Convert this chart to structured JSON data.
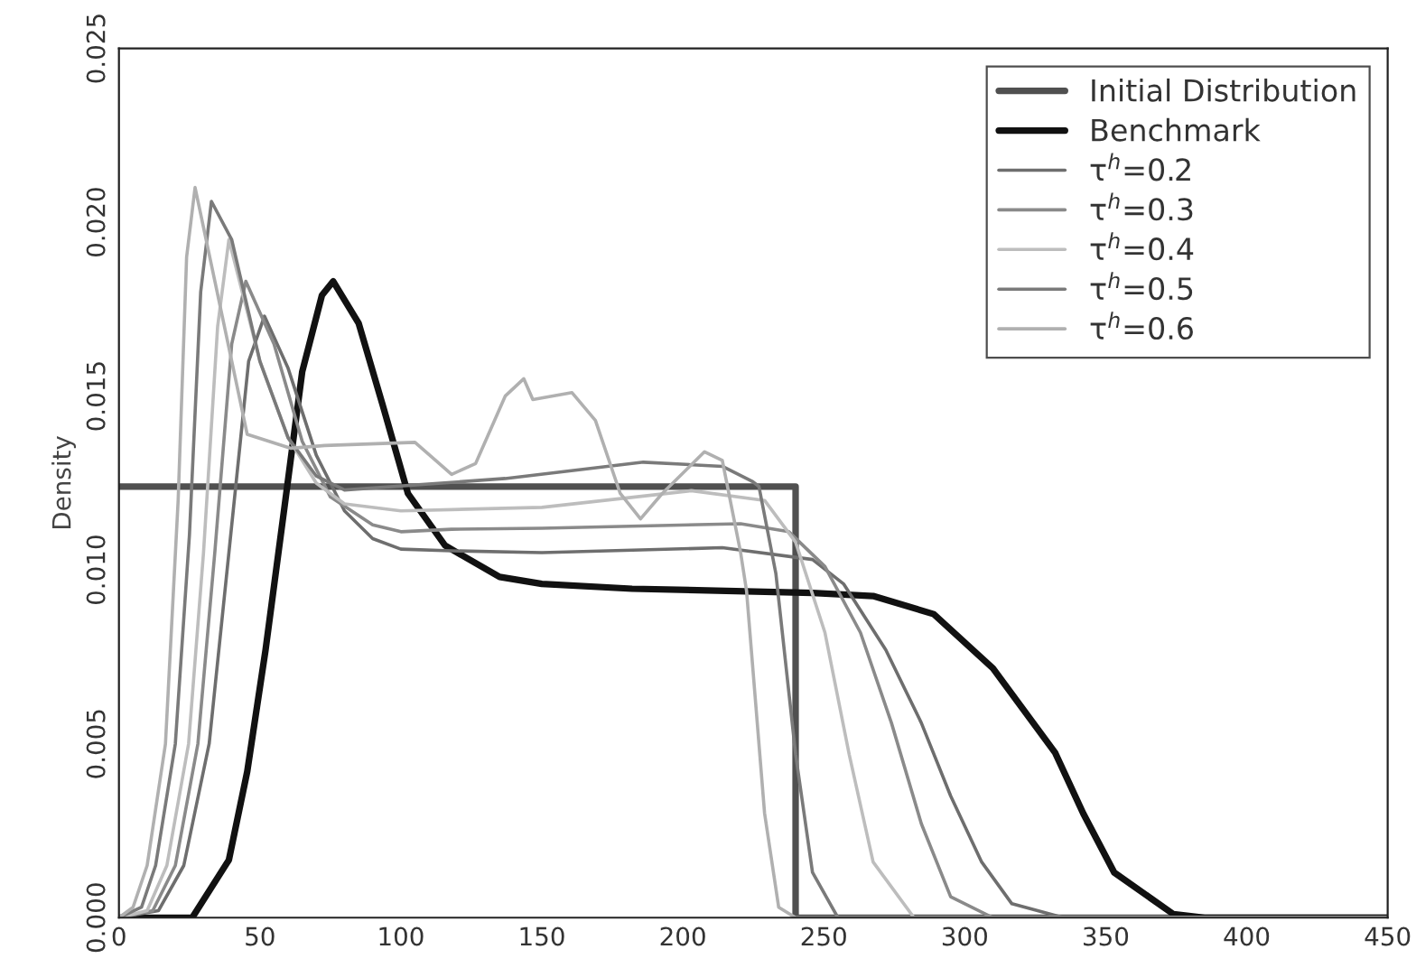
{
  "chart_data": {
    "type": "line",
    "ylabel": "Density",
    "xlim": [
      0,
      450
    ],
    "xticks": [
      0,
      50,
      100,
      150,
      200,
      250,
      300,
      350,
      400,
      450
    ],
    "ylim": [
      0,
      0.025
    ],
    "yticks": [
      {
        "value": 0,
        "label": "0.000"
      },
      {
        "value": 0.005,
        "label": "0.005"
      },
      {
        "value": 0.01,
        "label": "0.010"
      },
      {
        "value": 0.015,
        "label": "0.015"
      },
      {
        "value": 0.02,
        "label": "0.020"
      },
      {
        "value": 0.025,
        "label": "0.025"
      }
    ],
    "grid": false,
    "legend": "top right",
    "series": [
      {
        "name": "Initial Distribution",
        "color": "#505050",
        "x": [
          0,
          240,
          240,
          450
        ],
        "values": [
          0.0124,
          0.0124,
          0,
          0
        ]
      },
      {
        "name": "Benchmark",
        "color": "#111111",
        "x": [
          0,
          26,
          39,
          45.5,
          52,
          58.7,
          65,
          72,
          76,
          85,
          93.7,
          102.5,
          115.7,
          135,
          150,
          182,
          246,
          267.5,
          289,
          310,
          332,
          342,
          353,
          374,
          385,
          450
        ],
        "values": [
          0,
          0,
          0.00166,
          0.0042,
          0.0077,
          0.0118,
          0.0157,
          0.0179,
          0.0183,
          0.0171,
          0.0147,
          0.0122,
          0.0107,
          0.0098,
          0.0096,
          0.00946,
          0.00934,
          0.00925,
          0.00873,
          0.00717,
          0.00475,
          0.003,
          0.0013,
          0.0001,
          0,
          0
        ]
      },
      {
        "name": "τ$^{h}$=0.2",
        "color": "#6e6e6e",
        "x": [
          0,
          14,
          23,
          32,
          39,
          46,
          51.6,
          60,
          70,
          80,
          90,
          100,
          118,
          150,
          214,
          246,
          257,
          272,
          284.6,
          295,
          306,
          316.7,
          335,
          450
        ],
        "values": [
          0,
          0.0002,
          0.0015,
          0.005,
          0.0105,
          0.016,
          0.0173,
          0.0158,
          0.0133,
          0.0117,
          0.0109,
          0.0106,
          0.01055,
          0.0105,
          0.01064,
          0.0103,
          0.0096,
          0.0077,
          0.0056,
          0.0035,
          0.0016,
          0.0004,
          0,
          0
        ]
      },
      {
        "name": "τ$^{h}$=0.3",
        "color": "#8a8a8a",
        "x": [
          0,
          12,
          20,
          28,
          34,
          40,
          45,
          55,
          65,
          75,
          90,
          100,
          118,
          150,
          220.5,
          237.6,
          250.4,
          263,
          274,
          284.6,
          295,
          310,
          450
        ],
        "values": [
          0,
          0.0002,
          0.0015,
          0.005,
          0.0105,
          0.0165,
          0.0183,
          0.0165,
          0.0137,
          0.0121,
          0.0113,
          0.0111,
          0.01117,
          0.0112,
          0.01133,
          0.0111,
          0.0101,
          0.0082,
          0.0056,
          0.0027,
          0.0006,
          0,
          0
        ]
      },
      {
        "name": "τ$^{h}$=0.4",
        "color": "#bdbdbd",
        "x": [
          0,
          10,
          17,
          24.7,
          30,
          35,
          39,
          50,
          60,
          70,
          80,
          100,
          150,
          203,
          229,
          240,
          250.4,
          259,
          267.5,
          282,
          450
        ],
        "values": [
          0,
          0.0002,
          0.0015,
          0.005,
          0.0105,
          0.017,
          0.0195,
          0.016,
          0.0138,
          0.0125,
          0.0119,
          0.0117,
          0.0118,
          0.01228,
          0.012,
          0.0108,
          0.0082,
          0.0047,
          0.0016,
          0,
          0
        ]
      },
      {
        "name": "τ$^{h}$=0.5",
        "color": "#7a7a7a",
        "x": [
          0,
          8,
          13,
          20,
          25,
          29,
          32.8,
          40,
          50,
          60,
          70,
          80,
          137,
          186,
          214,
          224.8,
          227,
          233,
          240,
          246,
          255,
          450
        ],
        "values": [
          0,
          0.0003,
          0.0015,
          0.005,
          0.011,
          0.018,
          0.0206,
          0.0195,
          0.016,
          0.0138,
          0.0127,
          0.0123,
          0.01263,
          0.0131,
          0.01298,
          0.01254,
          0.0124,
          0.0099,
          0.0047,
          0.0013,
          0,
          0
        ]
      },
      {
        "name": "τ$^{h}$=0.6",
        "color": "#b0b0b0",
        "x": [
          0,
          5,
          10,
          16.5,
          21,
          24,
          27,
          45.5,
          61,
          73,
          105,
          118,
          126.5,
          137,
          143.6,
          146.8,
          160.7,
          169,
          177.8,
          185,
          192.7,
          207.7,
          214,
          220.5,
          222.6,
          229,
          234,
          240,
          450
        ],
        "values": [
          0,
          0.0003,
          0.0015,
          0.005,
          0.012,
          0.019,
          0.021,
          0.0139,
          0.0135,
          0.01358,
          0.01367,
          0.01275,
          0.01306,
          0.015,
          0.0155,
          0.0149,
          0.0151,
          0.0143,
          0.0122,
          0.01147,
          0.0122,
          0.0134,
          0.01315,
          0.0105,
          0.0094,
          0.003,
          0.0003,
          0,
          0
        ]
      }
    ]
  }
}
